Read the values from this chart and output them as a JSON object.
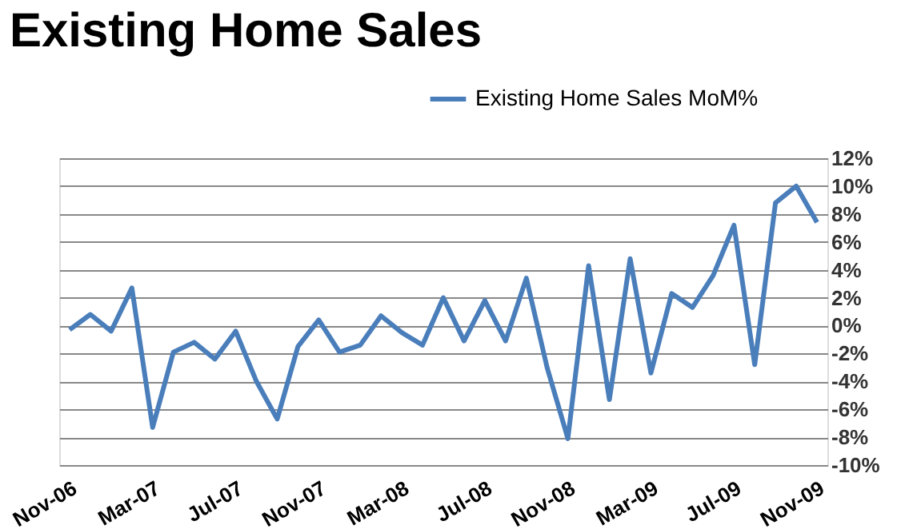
{
  "chart_data": {
    "type": "line",
    "title": "Existing Home Sales",
    "categories": [
      "Nov-06",
      null,
      null,
      null,
      "Mar-07",
      null,
      null,
      null,
      "Jul-07",
      null,
      null,
      null,
      "Nov-07",
      null,
      null,
      null,
      "Mar-08",
      null,
      null,
      null,
      "Jul-08",
      null,
      null,
      null,
      "Nov-08",
      null,
      null,
      null,
      "Mar-09",
      null,
      null,
      null,
      "Jul-09",
      null,
      null,
      null,
      "Nov-09"
    ],
    "series": [
      {
        "name": "Existing Home Sales MoM%",
        "color": "#4a7ebb",
        "values": [
          -0.3,
          0.8,
          -0.4,
          2.7,
          -7.3,
          -1.9,
          -1.2,
          -2.4,
          -0.4,
          -4.0,
          -6.7,
          -1.5,
          0.4,
          -1.9,
          -1.4,
          0.7,
          -0.5,
          -1.4,
          2.0,
          -1.1,
          1.8,
          -1.1,
          3.4,
          -3.0,
          -8.1,
          4.3,
          -5.3,
          4.8,
          -3.4,
          2.3,
          1.3,
          3.6,
          7.2,
          -2.8,
          8.8,
          10.0,
          7.4
        ]
      }
    ],
    "ylim": [
      -10,
      12
    ],
    "yticks": [
      {
        "value": -10,
        "label": "-10%"
      },
      {
        "value": -8,
        "label": "-8%"
      },
      {
        "value": -6,
        "label": "-6%"
      },
      {
        "value": -4,
        "label": "-4%"
      },
      {
        "value": -2,
        "label": "-2%"
      },
      {
        "value": 0,
        "label": "0%"
      },
      {
        "value": 2,
        "label": "2%"
      },
      {
        "value": 4,
        "label": "4%"
      },
      {
        "value": 6,
        "label": "6%"
      },
      {
        "value": 8,
        "label": "8%"
      },
      {
        "value": 10,
        "label": "10%"
      },
      {
        "value": 12,
        "label": "12%"
      }
    ],
    "grid": "y",
    "legend": "top right",
    "marker": "none",
    "line_style": "solid"
  }
}
